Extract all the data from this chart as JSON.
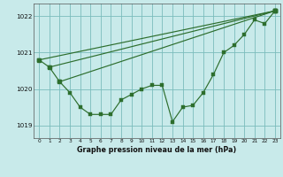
{
  "xlabel": "Graphe pression niveau de la mer (hPa)",
  "bg_color": "#c8eaea",
  "grid_color": "#7bbcbc",
  "line_color": "#2d6e2d",
  "ylim": [
    1018.65,
    1022.35
  ],
  "xlim": [
    -0.5,
    23.5
  ],
  "yticks": [
    1019,
    1020,
    1021,
    1022
  ],
  "xticks": [
    0,
    1,
    2,
    3,
    4,
    5,
    6,
    7,
    8,
    9,
    10,
    11,
    12,
    13,
    14,
    15,
    16,
    17,
    18,
    19,
    20,
    21,
    22,
    23
  ],
  "series1_x": [
    0,
    1,
    2,
    3,
    4,
    5,
    6,
    7,
    8,
    9,
    10,
    11,
    12,
    13,
    14,
    15,
    16,
    17,
    18,
    19,
    20,
    21,
    22,
    23
  ],
  "series1_y": [
    1020.8,
    1020.6,
    1020.2,
    1019.9,
    1019.5,
    1019.3,
    1019.3,
    1019.3,
    1019.7,
    1019.85,
    1020.0,
    1020.1,
    1020.1,
    1019.1,
    1019.5,
    1019.55,
    1019.9,
    1020.4,
    1021.0,
    1021.2,
    1021.5,
    1021.9,
    1021.8,
    1022.15
  ],
  "line1_x": [
    0,
    23
  ],
  "line1_y": [
    1020.8,
    1022.15
  ],
  "line2_x": [
    1,
    23
  ],
  "line2_y": [
    1020.6,
    1022.15
  ],
  "line3_x": [
    2,
    23
  ],
  "line3_y": [
    1020.2,
    1022.15
  ]
}
